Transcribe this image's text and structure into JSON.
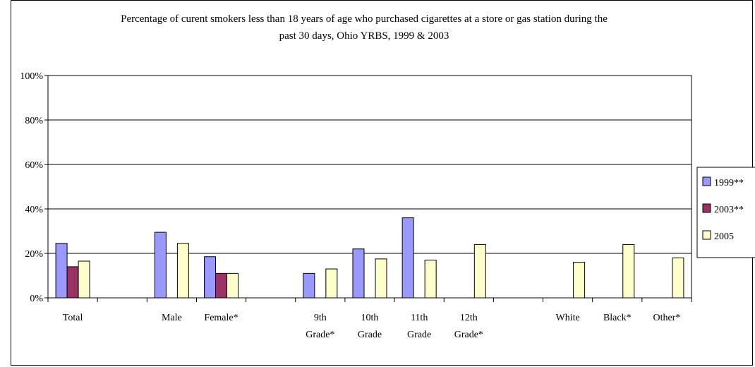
{
  "chart_data": {
    "type": "bar",
    "title_line1": "Percentage of curent smokers less than 18 years of age who purchased cigarettes at a store or gas station during the",
    "title_line2": "past 30 days, Ohio YRBS, 1999 & 2003",
    "xlabel": "",
    "ylabel": "",
    "ylim": [
      0,
      100
    ],
    "y_ticks": [
      "0%",
      "20%",
      "40%",
      "60%",
      "80%",
      "100%"
    ],
    "grid": true,
    "legend_position": "right",
    "categories": [
      {
        "line1": "Total",
        "line2": ""
      },
      {
        "line1": "",
        "line2": ""
      },
      {
        "line1": "Male",
        "line2": ""
      },
      {
        "line1": "Female*",
        "line2": ""
      },
      {
        "line1": "",
        "line2": ""
      },
      {
        "line1": "9th",
        "line2": "Grade*"
      },
      {
        "line1": "10th",
        "line2": "Grade"
      },
      {
        "line1": "11th",
        "line2": "Grade"
      },
      {
        "line1": "12th",
        "line2": "Grade*"
      },
      {
        "line1": "",
        "line2": ""
      },
      {
        "line1": "White",
        "line2": ""
      },
      {
        "line1": "Black*",
        "line2": ""
      },
      {
        "line1": "Other*",
        "line2": ""
      }
    ],
    "series": [
      {
        "name": "1999**",
        "color": "#9999ff",
        "values": [
          24.5,
          null,
          29.5,
          18.5,
          null,
          11,
          22,
          36,
          null,
          null,
          null,
          null,
          null
        ]
      },
      {
        "name": "2003**",
        "color": "#993366",
        "values": [
          14,
          null,
          null,
          11,
          null,
          null,
          null,
          null,
          null,
          null,
          null,
          null,
          null
        ]
      },
      {
        "name": "2005",
        "color": "#ffffcc",
        "values": [
          16.5,
          null,
          24.5,
          11,
          null,
          13,
          17.5,
          17,
          24,
          null,
          16,
          24,
          18
        ]
      }
    ]
  }
}
